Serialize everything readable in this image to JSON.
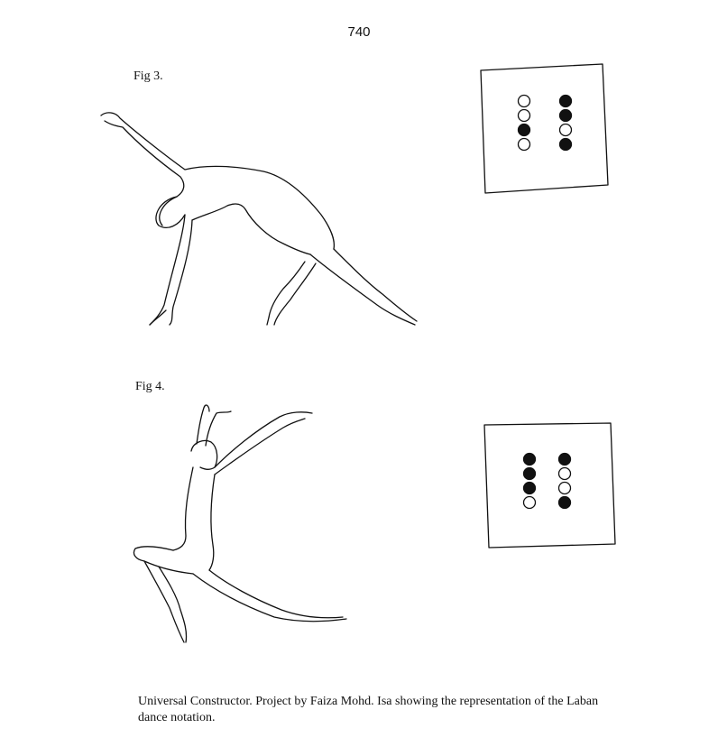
{
  "page_number": "740",
  "figures": [
    {
      "label": "Fig 3.",
      "notation": {
        "left_column": [
          "open",
          "open",
          "filled",
          "open"
        ],
        "right_column": [
          "filled",
          "filled",
          "open",
          "filled"
        ]
      }
    },
    {
      "label": "Fig 4.",
      "notation": {
        "left_column": [
          "filled",
          "filled",
          "filled",
          "open"
        ],
        "right_column": [
          "filled",
          "open",
          "open",
          "filled"
        ]
      }
    }
  ],
  "caption": "Universal Constructor.  Project by Faiza Mohd. Isa showing the representation of the Laban dance notation."
}
